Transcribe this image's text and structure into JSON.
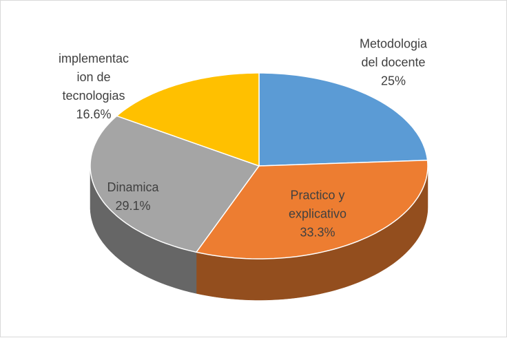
{
  "chart_data": {
    "type": "pie3d",
    "categories": [
      "Metodologia del docente",
      "Practico y explicativo",
      "Dinamica",
      "implementacion de tecnologias"
    ],
    "values": [
      25,
      33.3,
      29.1,
      16.6
    ],
    "value_labels": [
      "25%",
      "33.3%",
      "29.1%",
      "16.6%"
    ],
    "colors": [
      "#5b9bd5",
      "#ed7d31",
      "#a5a5a5",
      "#ffc000"
    ]
  }
}
